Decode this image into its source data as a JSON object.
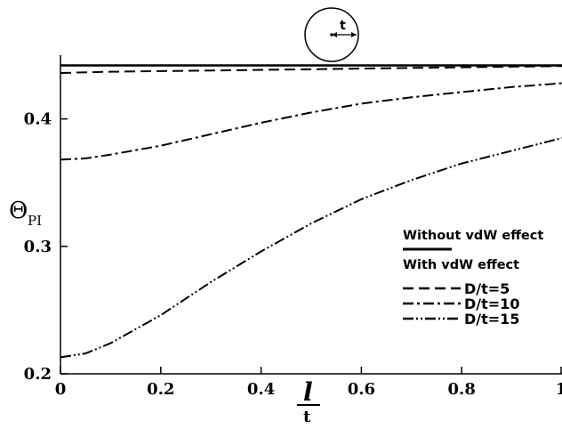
{
  "chart_data": {
    "type": "line",
    "xlabel": {
      "top": "l",
      "bottom": "t"
    },
    "ylabel": {
      "main": "Θ",
      "sub": "PI"
    },
    "xlim": [
      0,
      1
    ],
    "ylim": [
      0.2,
      0.45
    ],
    "x_ticks": [
      0,
      0.2,
      0.4,
      0.6,
      0.8,
      1
    ],
    "x_tick_labels": [
      "0",
      "0.2",
      "0.4",
      "0.6",
      "0.8",
      "1"
    ],
    "y_ticks": [
      0.2,
      0.3,
      0.4
    ],
    "y_tick_labels": [
      "0.2",
      "0.3",
      "0.4"
    ],
    "legend": {
      "placement": "right",
      "group1_label": "Without vdW effect",
      "group2_label": "With vdW effect",
      "entries": [
        "D/t=5",
        "D/t=10",
        "D/t=15"
      ]
    },
    "inset": {
      "label": "t"
    },
    "series": [
      {
        "style": "solid",
        "x": [
          0,
          0.2,
          0.4,
          0.6,
          0.8,
          1.0
        ],
        "y": [
          0.442,
          0.442,
          0.442,
          0.442,
          0.442,
          0.442
        ]
      },
      {
        "name": "D/t=5",
        "style": "dashed",
        "x": [
          0,
          0.1,
          0.2,
          0.3,
          0.4,
          0.5,
          0.6,
          0.7,
          0.8,
          0.9,
          1.0
        ],
        "y": [
          0.436,
          0.437,
          0.4375,
          0.438,
          0.4385,
          0.439,
          0.4395,
          0.44,
          0.4405,
          0.441,
          0.4415
        ]
      },
      {
        "name": "D/t=10",
        "style": "dashdot",
        "x": [
          0,
          0.05,
          0.1,
          0.2,
          0.3,
          0.4,
          0.5,
          0.6,
          0.7,
          0.8,
          0.9,
          1.0
        ],
        "y": [
          0.368,
          0.369,
          0.372,
          0.379,
          0.388,
          0.397,
          0.405,
          0.412,
          0.417,
          0.421,
          0.425,
          0.428
        ]
      },
      {
        "name": "D/t=15",
        "style": "dashdotdot",
        "x": [
          0,
          0.05,
          0.1,
          0.2,
          0.3,
          0.4,
          0.5,
          0.6,
          0.7,
          0.8,
          0.9,
          1.0
        ],
        "y": [
          0.213,
          0.216,
          0.224,
          0.246,
          0.272,
          0.296,
          0.318,
          0.337,
          0.352,
          0.365,
          0.375,
          0.385
        ]
      }
    ]
  }
}
